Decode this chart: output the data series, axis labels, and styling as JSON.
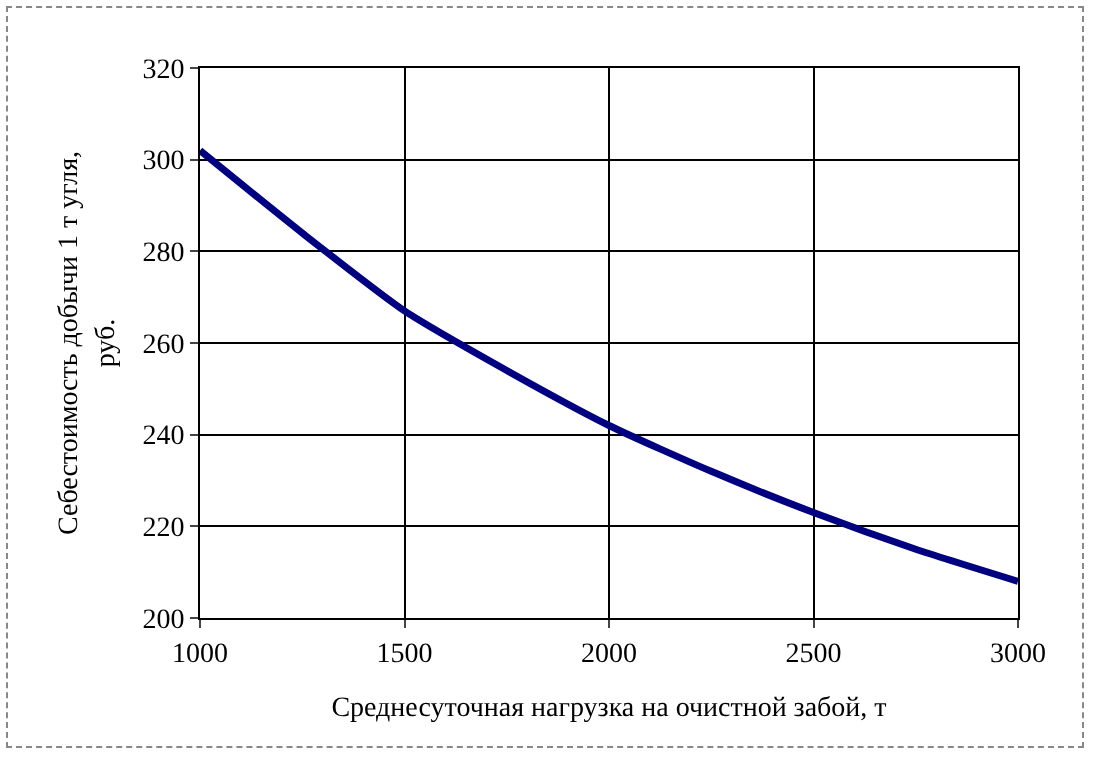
{
  "chart_data": {
    "type": "line",
    "xlabel": "Среднесуточная нагрузка на очистной забой, т",
    "ylabel": "Себестоимость добычи 1 т угля,\nруб.",
    "x": [
      1000,
      1250,
      1500,
      1750,
      2000,
      2250,
      2500,
      2750,
      3000
    ],
    "series": [
      {
        "color": "#000080",
        "values": [
          302,
          284,
          267,
          254,
          242,
          232,
          223,
          215,
          208
        ]
      }
    ],
    "xlim": [
      1000,
      3000
    ],
    "xticks": [
      1000,
      1500,
      2000,
      2500,
      3000
    ],
    "ylim": [
      200,
      320
    ],
    "yticks": [
      200,
      220,
      240,
      260,
      280,
      300,
      320
    ],
    "grid": true,
    "marker": "none",
    "line_style": "solid"
  }
}
